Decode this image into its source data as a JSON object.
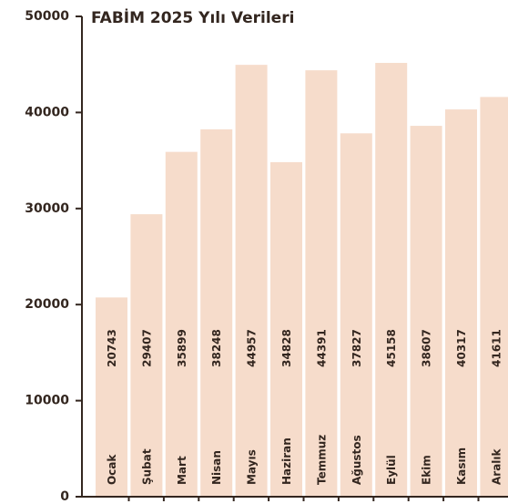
{
  "chart_data": {
    "type": "bar",
    "title": "FABİM 2025 Yılı Verileri",
    "categories": [
      "Ocak",
      "Şubat",
      "Mart",
      "Nisan",
      "Mayıs",
      "Haziran",
      "Temmuz",
      "Ağustos",
      "Eylül",
      "Ekim",
      "Kasım",
      "Aralık"
    ],
    "values": [
      20743,
      29407,
      35899,
      38248,
      44957,
      34828,
      44391,
      37827,
      45158,
      38607,
      40317,
      41611
    ],
    "color": "#f6dccb",
    "ylim": [
      0,
      50000
    ],
    "yticks": [
      0,
      10000,
      20000,
      30000,
      40000,
      50000
    ],
    "grid": false
  }
}
